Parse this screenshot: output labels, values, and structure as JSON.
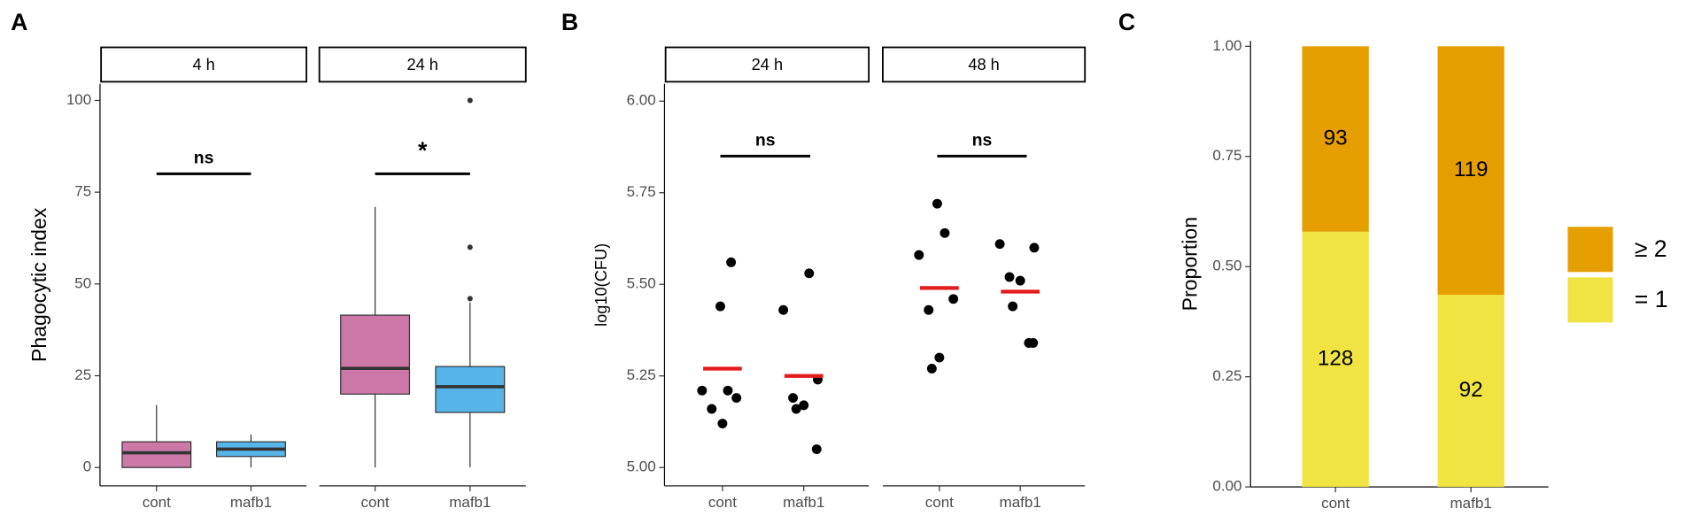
{
  "chart_data": [
    {
      "type": "box",
      "panel_label": "A",
      "ylabel": "Phagocytic index",
      "categories": [
        "cont",
        "mafb1"
      ],
      "colors": [
        "#cc79a7",
        "#56b4e9"
      ],
      "ylim": [
        -5,
        104.5
      ],
      "yticks": [
        0,
        25,
        50,
        75,
        100
      ],
      "facets": [
        {
          "label": "4 h",
          "annotation": {
            "text": "ns",
            "y": 80
          },
          "boxes": [
            {
              "min": 0,
              "q1": 0,
              "median": 4,
              "q3": 7,
              "max": 17,
              "outliers": []
            },
            {
              "min": 0,
              "q1": 3,
              "median": 5,
              "q3": 7,
              "max": 9,
              "outliers": []
            }
          ]
        },
        {
          "label": "24 h",
          "annotation": {
            "text": "*",
            "y": 80
          },
          "boxes": [
            {
              "min": 0,
              "q1": 20,
              "median": 27,
              "q3": 41.5,
              "max": 71,
              "outliers": []
            },
            {
              "min": 0,
              "q1": 15,
              "median": 22,
              "q3": 27.5,
              "max": 45,
              "outliers": [
                46,
                60,
                100
              ]
            }
          ]
        }
      ]
    },
    {
      "type": "strip",
      "panel_label": "B",
      "ylabel": "log10(CFU)",
      "categories": [
        "cont",
        "mafb1"
      ],
      "point_color": "#000000",
      "mean_color": "#e41a1c",
      "ylim": [
        4.95,
        6.047
      ],
      "yticks": [
        {
          "value": 5,
          "label": "5.00"
        },
        {
          "value": 5.25,
          "label": "5.25"
        },
        {
          "value": 5.5,
          "label": "5.50"
        },
        {
          "value": 5.75,
          "label": "5.75"
        },
        {
          "value": 6,
          "label": "6.00"
        }
      ],
      "facets": [
        {
          "label": "24 h",
          "annotation": {
            "text": "ns",
            "y": 5.85
          },
          "groups": [
            {
              "values": [
                5.56,
                5.44,
                5.21,
                5.21,
                5.19,
                5.16,
                5.12
              ],
              "mean": 5.27
            },
            {
              "values": [
                5.53,
                5.43,
                5.24,
                5.19,
                5.17,
                5.16,
                5.05
              ],
              "mean": 5.25
            }
          ]
        },
        {
          "label": "48 h",
          "annotation": {
            "text": "ns",
            "y": 5.85
          },
          "groups": [
            {
              "values": [
                5.72,
                5.64,
                5.58,
                5.46,
                5.43,
                5.3,
                5.27
              ],
              "mean": 5.49
            },
            {
              "values": [
                5.61,
                5.6,
                5.52,
                5.51,
                5.44,
                5.34,
                5.34
              ],
              "mean": 5.48
            }
          ]
        }
      ]
    },
    {
      "type": "stacked_bar",
      "panel_label": "C",
      "ylabel": "Proportion",
      "categories": [
        "cont",
        "mafb1"
      ],
      "ylim": [
        0,
        1.0122
      ],
      "yticks": [
        {
          "value": 0,
          "label": "0.00"
        },
        {
          "value": 0.25,
          "label": "0.25"
        },
        {
          "value": 0.5,
          "label": "0.50"
        },
        {
          "value": 0.75,
          "label": "0.75"
        },
        {
          "value": 1,
          "label": "1.00"
        }
      ],
      "series": [
        {
          "name": "= 1",
          "color": "#f0e442",
          "values": [
            0.5792,
            0.436
          ],
          "labels": [
            "128",
            "92"
          ]
        },
        {
          "name": "≥ 2",
          "color": "#e69f00",
          "values": [
            0.4208,
            0.564
          ],
          "labels": [
            "93",
            "119"
          ]
        }
      ]
    }
  ]
}
